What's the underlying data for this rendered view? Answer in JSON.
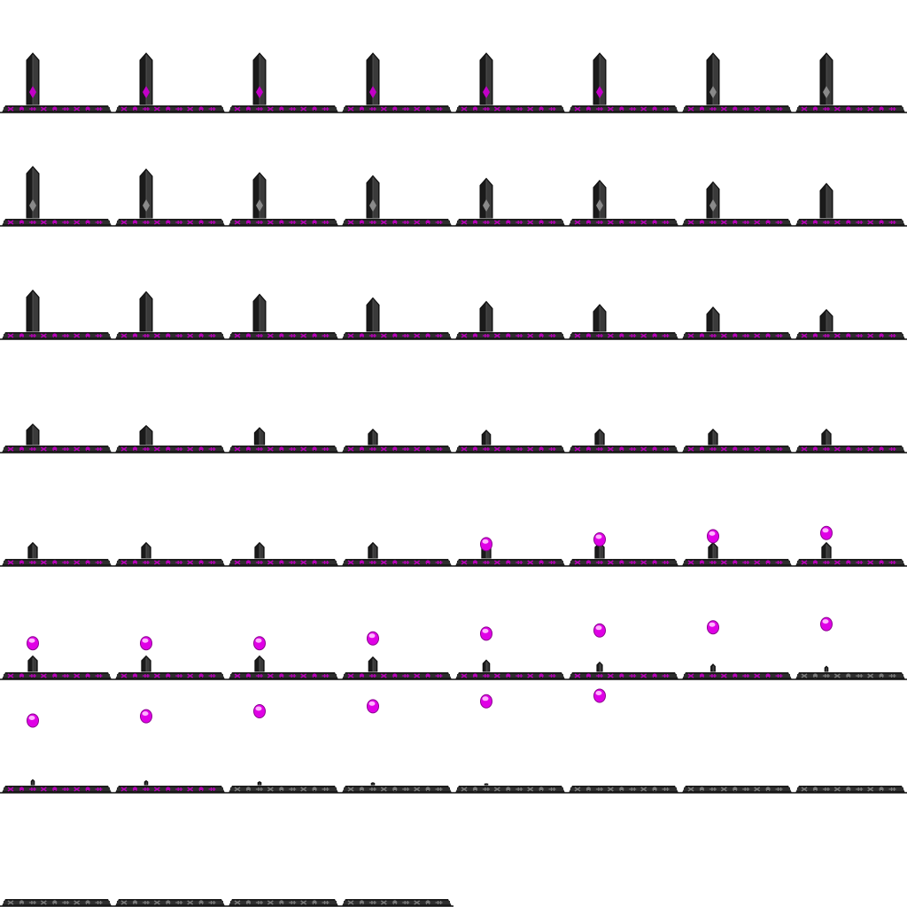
{
  "sheet": {
    "kind": "sprite-sheet",
    "subject": "obelisk-sinking-into-rune-platform",
    "grid_columns": 8,
    "grid_rows": 8,
    "frame_count": 60,
    "colors": {
      "background": "#ffffff",
      "obelisk_dark": "#1a1a1a",
      "obelisk_mid": "#3a3a3a",
      "obelisk_light": "#5a5a5a",
      "gem_active": "#c300c8",
      "gem_inactive": "#8a8a8a",
      "platform_dark": "#1c1c1c",
      "platform_band": "#2e2e2e",
      "rune_active": "#b800b8",
      "rune_inactive": "#7a7a7a",
      "orb_fill": "#e000e6",
      "orb_highlight": "#ffb3ff"
    },
    "frames": [
      {
        "obelisk": 1.0,
        "gem": "active",
        "runes": "active"
      },
      {
        "obelisk": 1.0,
        "gem": "active",
        "runes": "active"
      },
      {
        "obelisk": 1.0,
        "gem": "active",
        "runes": "active"
      },
      {
        "obelisk": 1.0,
        "gem": "active",
        "runes": "active"
      },
      {
        "obelisk": 1.0,
        "gem": "active",
        "runes": "active"
      },
      {
        "obelisk": 1.0,
        "gem": "active",
        "runes": "active"
      },
      {
        "obelisk": 1.0,
        "gem": "inactive",
        "runes": "active"
      },
      {
        "obelisk": 1.0,
        "gem": "inactive",
        "runes": "active"
      },
      {
        "obelisk": 1.0,
        "gem": "inactive",
        "runes": "active"
      },
      {
        "obelisk": 0.95,
        "gem": "inactive",
        "runes": "active"
      },
      {
        "obelisk": 0.88,
        "gem": "inactive",
        "runes": "active"
      },
      {
        "obelisk": 0.82,
        "gem": "inactive",
        "runes": "active"
      },
      {
        "obelisk": 0.77,
        "gem": "inactive",
        "runes": "active"
      },
      {
        "obelisk": 0.73,
        "gem": "inactive",
        "runes": "active"
      },
      {
        "obelisk": 0.7,
        "gem": "inactive",
        "runes": "active"
      },
      {
        "obelisk": 0.67,
        "gem": "none",
        "runes": "active"
      },
      {
        "obelisk": 0.8,
        "gem": "none",
        "runes": "active"
      },
      {
        "obelisk": 0.77,
        "gem": "none",
        "runes": "active"
      },
      {
        "obelisk": 0.72,
        "gem": "none",
        "runes": "active"
      },
      {
        "obelisk": 0.65,
        "gem": "none",
        "runes": "active"
      },
      {
        "obelisk": 0.58,
        "gem": "none",
        "runes": "active"
      },
      {
        "obelisk": 0.52,
        "gem": "none",
        "runes": "active"
      },
      {
        "obelisk": 0.47,
        "gem": "none",
        "runes": "active"
      },
      {
        "obelisk": 0.42,
        "gem": "none",
        "runes": "active"
      },
      {
        "obelisk": 0.4,
        "gem": "none",
        "runes": "active"
      },
      {
        "obelisk": 0.37,
        "gem": "none",
        "runes": "active"
      },
      {
        "obelisk": 0.33,
        "gem": "none",
        "runes": "active"
      },
      {
        "obelisk": 0.3,
        "gem": "none",
        "runes": "active"
      },
      {
        "obelisk": 0.28,
        "gem": "none",
        "runes": "active"
      },
      {
        "obelisk": 0.3,
        "gem": "none",
        "runes": "active"
      },
      {
        "obelisk": 0.3,
        "gem": "none",
        "runes": "active"
      },
      {
        "obelisk": 0.3,
        "gem": "none",
        "runes": "active"
      },
      {
        "obelisk": 0.3,
        "gem": "none",
        "runes": "active"
      },
      {
        "obelisk": 0.3,
        "gem": "none",
        "runes": "active"
      },
      {
        "obelisk": 0.3,
        "gem": "none",
        "runes": "active"
      },
      {
        "obelisk": 0.3,
        "gem": "none",
        "runes": "active"
      },
      {
        "obelisk": 0.3,
        "gem": "none",
        "runes": "active",
        "orb_rise": 0.1
      },
      {
        "obelisk": 0.3,
        "gem": "none",
        "runes": "active",
        "orb_rise": 0.25
      },
      {
        "obelisk": 0.3,
        "gem": "none",
        "runes": "active",
        "orb_rise": 0.35
      },
      {
        "obelisk": 0.3,
        "gem": "none",
        "runes": "active",
        "orb_rise": 0.45
      },
      {
        "obelisk": 0.3,
        "gem": "none",
        "runes": "active",
        "orb_rise": 0.55,
        "orb_trail": 0.35
      },
      {
        "obelisk": 0.3,
        "gem": "none",
        "runes": "active",
        "orb_rise": 0.55,
        "orb_trail": 0.42
      },
      {
        "obelisk": 0.3,
        "gem": "none",
        "runes": "active",
        "orb_rise": 0.55,
        "orb_trail": 0.5
      },
      {
        "obelisk": 0.28,
        "gem": "none",
        "runes": "active",
        "orb_rise": 0.7,
        "orb_trail": 0.58
      },
      {
        "obelisk": 0.22,
        "gem": "none",
        "runes": "active",
        "orb_rise": 0.85,
        "orb_trail": 0.66
      },
      {
        "obelisk": 0.18,
        "gem": "none",
        "runes": "active",
        "orb_rise": 0.95,
        "orb_trail": 0.75
      },
      {
        "obelisk": 0.14,
        "gem": "none",
        "runes": "active",
        "orb_rise": 1.05
      },
      {
        "obelisk": 0.1,
        "gem": "none",
        "runes": "inactive",
        "orb_rise": 1.15
      },
      {
        "obelisk": 0.1,
        "gem": "none",
        "runes": "active"
      },
      {
        "obelisk": 0.08,
        "gem": "none",
        "runes": "active"
      },
      {
        "obelisk": 0.06,
        "gem": "none",
        "runes": "inactive"
      },
      {
        "obelisk": 0.04,
        "gem": "none",
        "runes": "inactive"
      },
      {
        "obelisk": 0.02,
        "gem": "none",
        "runes": "inactive"
      },
      {
        "obelisk": 0.0,
        "gem": "none",
        "runes": "inactive"
      },
      {
        "obelisk": 0.0,
        "gem": "none",
        "runes": "inactive"
      },
      {
        "obelisk": 0.0,
        "gem": "none",
        "runes": "inactive"
      },
      {
        "obelisk": 0.0,
        "gem": "none",
        "runes": "inactive"
      },
      {
        "obelisk": 0.0,
        "gem": "none",
        "runes": "inactive"
      },
      {
        "obelisk": 0.0,
        "gem": "none",
        "runes": "inactive"
      },
      {
        "obelisk": 0.0,
        "gem": "none",
        "runes": "inactive"
      }
    ],
    "rune_glyphs": [
      "x-rune-icon",
      "eye-rune-icon",
      "skull-rune-icon",
      "dollar-rune-icon",
      "skull-rune-icon",
      "skull-rune-icon",
      "arrow-rune-icon",
      "bars-rune-icon",
      "figure-rune-icon"
    ]
  }
}
